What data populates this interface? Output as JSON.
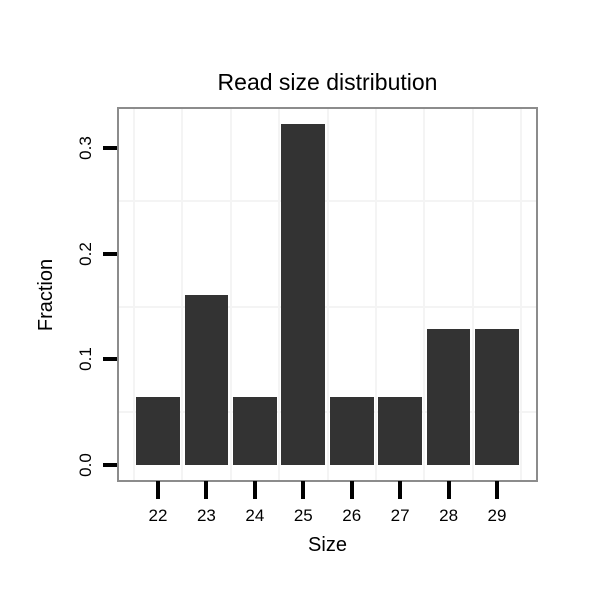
{
  "chart_data": {
    "type": "bar",
    "title": "Read size distribution",
    "xlabel": "Size",
    "ylabel": "Fraction",
    "categories": [
      "22",
      "23",
      "24",
      "25",
      "26",
      "27",
      "28",
      "29"
    ],
    "values": [
      0.0645,
      0.1613,
      0.0645,
      0.3226,
      0.0645,
      0.0645,
      0.129,
      0.129
    ],
    "ytick_labels": [
      "0.0",
      "0.1",
      "0.2",
      "0.3"
    ],
    "ytick_values": [
      0.0,
      0.1,
      0.2,
      0.3
    ],
    "ylim": [
      -0.016,
      0.337
    ],
    "grid_minor_y": [
      0.05,
      0.15,
      0.25
    ],
    "grid": "minor-only",
    "legend_position": "none",
    "colors": {
      "bar": "#333333",
      "panel_border": "#8c8c8c",
      "gridline": "#f4f4f4",
      "tick": "#000000",
      "text": "#000000"
    }
  }
}
